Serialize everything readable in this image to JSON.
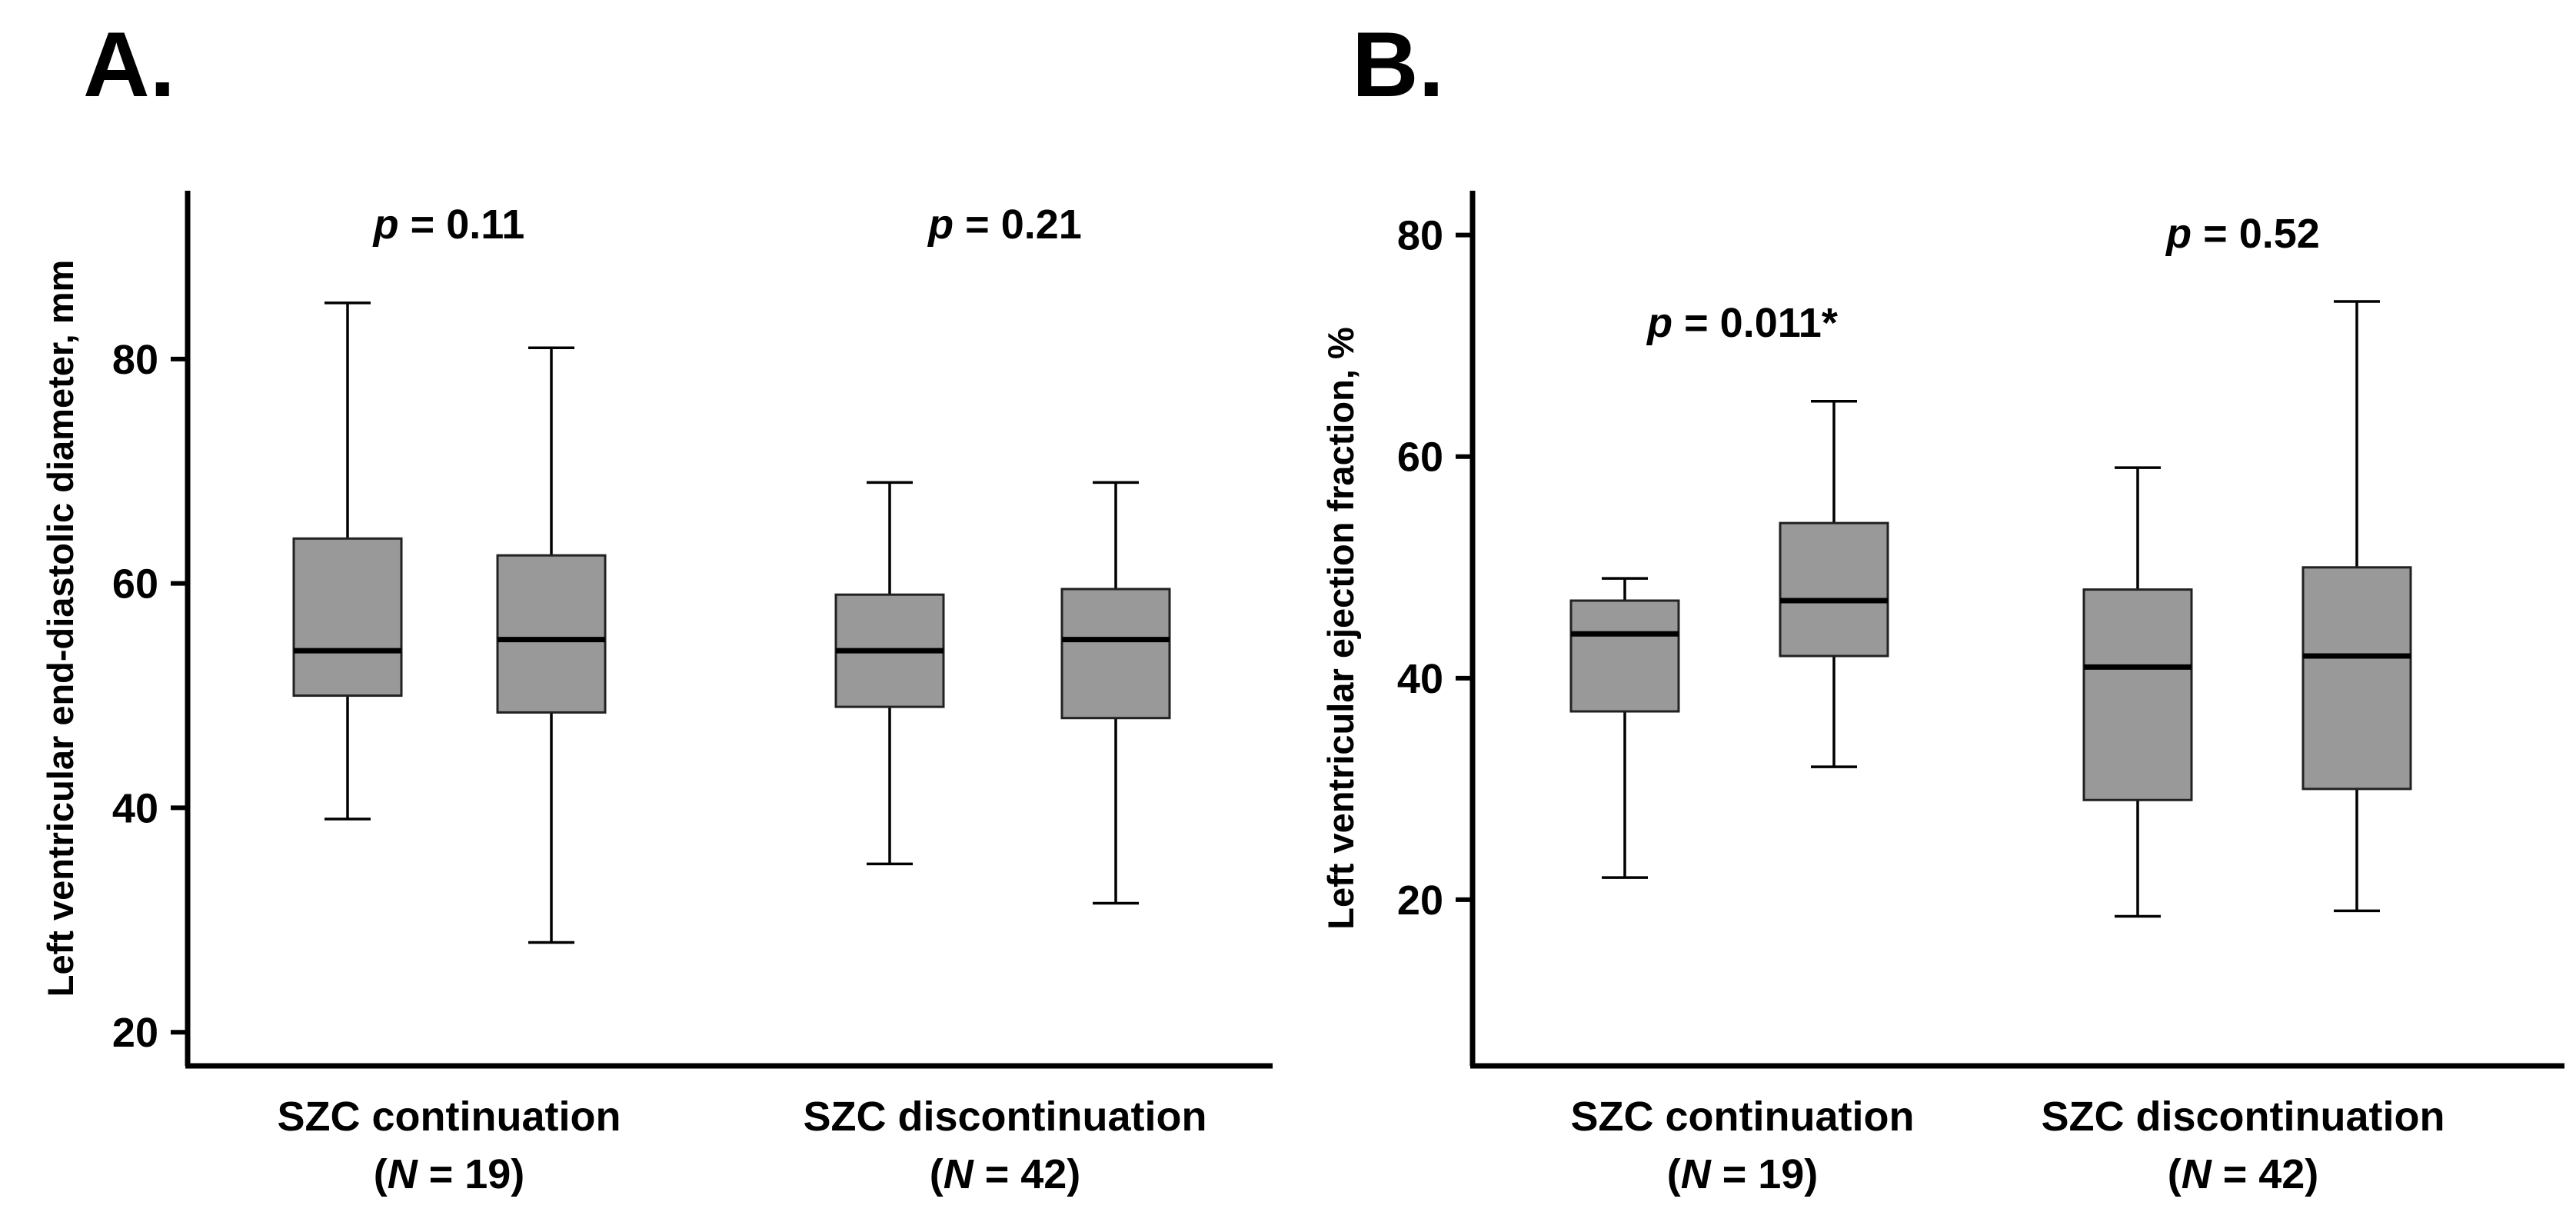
{
  "chart_data": [
    {
      "type": "box",
      "panel": "A.",
      "ylabel": "Left ventricular end-diastolic diameter, mm",
      "ylim": [
        17,
        95
      ],
      "yticks": [
        20,
        40,
        60,
        80
      ],
      "groups": [
        {
          "label_line1": "SZC continuation",
          "label_n_prefix": "(",
          "label_n_var": "N",
          "label_n_suffix": " = 19)",
          "p_prefix": "p",
          "p_text": " = 0.11"
        },
        {
          "label_line1": "SZC discontinuation",
          "label_n_prefix": "(",
          "label_n_var": "N",
          "label_n_suffix": " = 42)",
          "p_prefix": "p",
          "p_text": " = 0.21"
        }
      ],
      "boxes": [
        {
          "group": 0,
          "min": 39,
          "q1": 50,
          "median": 54,
          "q3": 64,
          "max": 85
        },
        {
          "group": 0,
          "min": 28,
          "q1": 48.5,
          "median": 55,
          "q3": 62.5,
          "max": 81
        },
        {
          "group": 1,
          "min": 35,
          "q1": 49,
          "median": 54,
          "q3": 59,
          "max": 69
        },
        {
          "group": 1,
          "min": 31.5,
          "q1": 48,
          "median": 55,
          "q3": 59.5,
          "max": 69
        }
      ]
    },
    {
      "type": "box",
      "panel": "B.",
      "ylabel": "Left ventricular ejection fraction, %",
      "ylim": [
        5,
        84
      ],
      "yticks": [
        20,
        40,
        60,
        80
      ],
      "groups": [
        {
          "label_line1": "SZC continuation",
          "label_n_prefix": "(",
          "label_n_var": "N",
          "label_n_suffix": " = 19)",
          "p_prefix": "p",
          "p_text": " = 0.011*"
        },
        {
          "label_line1": "SZC discontinuation",
          "label_n_prefix": "(",
          "label_n_var": "N",
          "label_n_suffix": " = 42)",
          "p_prefix": "p",
          "p_text": " = 0.52"
        }
      ],
      "boxes": [
        {
          "group": 0,
          "min": 22,
          "q1": 37,
          "median": 44,
          "q3": 47,
          "max": 49
        },
        {
          "group": 0,
          "min": 32,
          "q1": 42,
          "median": 47,
          "q3": 54,
          "max": 65
        },
        {
          "group": 1,
          "min": 18.5,
          "q1": 29,
          "median": 41,
          "q3": 48,
          "max": 59
        },
        {
          "group": 1,
          "min": 19,
          "q1": 30,
          "median": 42,
          "q3": 50,
          "max": 74
        }
      ]
    }
  ]
}
